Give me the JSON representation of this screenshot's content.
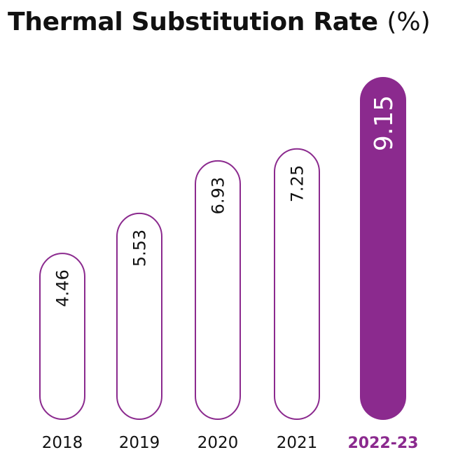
{
  "title": "Thermal Substitution Rate",
  "title_unit": "(%)",
  "colors": {
    "outline": "#8B2A8E",
    "highlight": "#8B2A8E",
    "text": "#111111",
    "highlight_text": "#ffffff"
  },
  "chart_data": {
    "type": "bar",
    "title": "Thermal Substitution Rate (%)",
    "categories": [
      "2018",
      "2019",
      "2020",
      "2021",
      "2022-23"
    ],
    "values": [
      4.46,
      5.53,
      6.93,
      7.25,
      9.15
    ],
    "value_labels": [
      "4.46",
      "5.53",
      "6.93",
      "7.25",
      "9.15"
    ],
    "highlight_category": "2022-23",
    "grid": false,
    "legend": "none",
    "value_label_orientation": "vertical"
  }
}
